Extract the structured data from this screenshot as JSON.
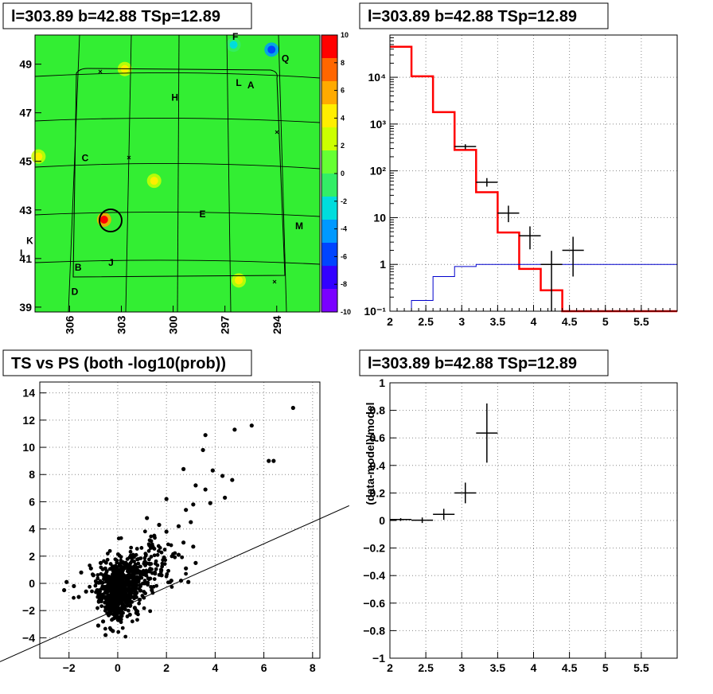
{
  "panels": {
    "map": {
      "title": "l=303.89 b=42.88 TSp=12.89",
      "x_ticks": [
        "306",
        "303",
        "300",
        "297",
        "294"
      ],
      "y_ticks": [
        "49",
        "47",
        "45",
        "43",
        "41",
        "39"
      ],
      "colorbar_ticks": [
        "10",
        "8",
        "6",
        "4",
        "2",
        "0",
        "-2",
        "-4",
        "-6",
        "-8",
        "-10"
      ],
      "colorbar_colors": [
        "#ff0000",
        "#ff6600",
        "#ffaa00",
        "#ffee00",
        "#ccff00",
        "#66ff33",
        "#33ee66",
        "#00dddd",
        "#0099ff",
        "#0044ff",
        "#3300ff",
        "#7a00ff"
      ],
      "background_color": "#33ee33",
      "labels": [
        "F",
        "L",
        "A",
        "H",
        "C",
        "E",
        "K",
        "M",
        "J",
        "B",
        "D",
        "Q",
        "I"
      ]
    },
    "spectrum": {
      "title": "l=303.89 b=42.88 TSp=12.89"
    },
    "scatter": {
      "title": "TS vs PS (both -log10(prob))"
    },
    "residual": {
      "title": "l=303.89 b=42.88 TSp=12.89"
    }
  },
  "chart_data": [
    {
      "type": "heatmap",
      "title": "l=303.89 b=42.88 TSp=12.89",
      "xlabel": "",
      "ylabel": "",
      "xlim": [
        308,
        291.5
      ],
      "ylim": [
        38.8,
        50.2
      ],
      "zlim": [
        -10,
        10
      ],
      "background_level": 1,
      "hotspots": [
        {
          "x": 304.0,
          "y": 42.6,
          "z": 10,
          "label": "circled source"
        },
        {
          "x": 307.8,
          "y": 45.2,
          "z": 5
        },
        {
          "x": 301.1,
          "y": 44.2,
          "z": 4
        },
        {
          "x": 296.2,
          "y": 40.1,
          "z": 4
        },
        {
          "x": 302.8,
          "y": 48.8,
          "z": 4
        },
        {
          "x": 294.3,
          "y": 49.6,
          "z": -7
        },
        {
          "x": 296.5,
          "y": 49.8,
          "z": -2
        }
      ],
      "labels": [
        {
          "text": "F",
          "x": 296.4,
          "y": 50.0
        },
        {
          "text": "L",
          "x": 296.2,
          "y": 48.1
        },
        {
          "text": "A",
          "x": 295.5,
          "y": 48.0
        },
        {
          "text": "H",
          "x": 299.9,
          "y": 47.5
        },
        {
          "text": "C",
          "x": 305.1,
          "y": 45.0
        },
        {
          "text": "E",
          "x": 298.3,
          "y": 42.7
        },
        {
          "text": "K",
          "x": 308.3,
          "y": 41.6
        },
        {
          "text": "M",
          "x": 292.7,
          "y": 42.2
        },
        {
          "text": "J",
          "x": 303.6,
          "y": 40.7
        },
        {
          "text": "B",
          "x": 305.5,
          "y": 40.5
        },
        {
          "text": "D",
          "x": 305.7,
          "y": 39.5
        },
        {
          "text": "Q",
          "x": 293.5,
          "y": 49.1
        },
        {
          "text": "I",
          "x": 308.8,
          "y": 41.1
        }
      ]
    },
    {
      "type": "line",
      "title": "l=303.89 b=42.88 TSp=12.89",
      "xlabel": "",
      "ylabel": "",
      "xlim": [
        2,
        6
      ],
      "ylim": [
        0.1,
        80000
      ],
      "yscale": "log",
      "grid": true,
      "series": [
        {
          "color": "#ff0000",
          "style": "step",
          "bins": [
            2.0,
            2.3,
            2.6,
            2.9,
            3.2,
            3.5,
            3.8,
            4.1,
            4.4,
            4.7,
            5.0,
            5.3,
            5.6,
            6.0
          ],
          "values": [
            45000,
            10500,
            1800,
            280,
            35,
            4.8,
            0.8,
            0.28,
            0.1,
            0.1,
            0.1,
            0.1,
            0.1
          ]
        },
        {
          "color": "#0000cc",
          "style": "step",
          "bins": [
            2.0,
            2.3,
            2.6,
            2.9,
            3.2,
            3.5,
            3.8,
            4.1,
            4.4,
            4.7,
            5.0,
            5.3,
            5.6,
            6.0
          ],
          "values": [
            0.05,
            0.17,
            0.55,
            0.9,
            1.0,
            1.0,
            1.0,
            1.0,
            1.0,
            1.0,
            1.0,
            1.0,
            1.0
          ]
        },
        {
          "color": "#000000",
          "style": "errorbar",
          "points": [
            {
              "x": 3.05,
              "y": 330,
              "xerr": 0.15,
              "ylo": 290,
              "yhi": 370
            },
            {
              "x": 3.35,
              "y": 57,
              "xerr": 0.15,
              "ylo": 46,
              "yhi": 70
            },
            {
              "x": 3.65,
              "y": 12.5,
              "xerr": 0.15,
              "ylo": 8,
              "yhi": 18
            },
            {
              "x": 3.95,
              "y": 4.1,
              "xerr": 0.15,
              "ylo": 2.1,
              "yhi": 6.5
            },
            {
              "x": 4.25,
              "y": 1.0,
              "xerr": 0.15,
              "ylo": 0.1,
              "yhi": 1.95
            },
            {
              "x": 4.55,
              "y": 2.0,
              "xerr": 0.15,
              "ylo": 0.55,
              "yhi": 3.9
            }
          ]
        }
      ]
    },
    {
      "type": "scatter",
      "title": "TS vs PS (both -log10(prob))",
      "xlabel": "",
      "ylabel": "",
      "xlim": [
        -3.2,
        8.3
      ],
      "ylim": [
        -5.5,
        14.8
      ],
      "grid": true,
      "fit_line": {
        "slope": 0.78,
        "intercept": -1.7
      },
      "bulk": {
        "cx": 0.0,
        "cy": -0.3,
        "count": 900
      },
      "points": [
        [
          7.2,
          12.9
        ],
        [
          5.5,
          11.6
        ],
        [
          4.8,
          11.3
        ],
        [
          3.6,
          10.9
        ],
        [
          6.2,
          9.0
        ],
        [
          6.4,
          9.0
        ],
        [
          3.5,
          9.8
        ],
        [
          3.9,
          8.3
        ],
        [
          2.7,
          8.4
        ],
        [
          4.3,
          7.9
        ],
        [
          4.7,
          7.6
        ],
        [
          3.2,
          7.2
        ],
        [
          3.6,
          6.9
        ],
        [
          3.8,
          5.9
        ],
        [
          4.4,
          6.3
        ],
        [
          2.0,
          6.2
        ],
        [
          3.1,
          5.8
        ],
        [
          2.8,
          5.4
        ],
        [
          3.0,
          4.5
        ],
        [
          2.5,
          4.2
        ],
        [
          2.0,
          3.8
        ],
        [
          2.7,
          3.0
        ],
        [
          3.1,
          2.7
        ],
        [
          2.5,
          2.1
        ],
        [
          3.2,
          1.5
        ],
        [
          2.8,
          1.1
        ],
        [
          2.6,
          0.2
        ],
        [
          2.9,
          0.1
        ],
        [
          2.2,
          0.2
        ],
        [
          1.9,
          1.9
        ],
        [
          1.5,
          3.5
        ],
        [
          1.2,
          4.8
        ],
        [
          1.7,
          4.3
        ],
        [
          1.3,
          2.8
        ],
        [
          -2.2,
          -0.5
        ],
        [
          -2.1,
          0.1
        ],
        [
          -1.8,
          -0.2
        ],
        [
          -1.6,
          -1.0
        ],
        [
          -1.3,
          -0.6
        ],
        [
          -1.5,
          0.8
        ],
        [
          -1.1,
          1.1
        ],
        [
          -0.5,
          -3.8
        ],
        [
          -0.8,
          -3.1
        ],
        [
          -0.2,
          -3.5
        ],
        [
          -0.6,
          -2.8
        ],
        [
          0.5,
          -2.3
        ],
        [
          -1.0,
          0.6
        ],
        [
          -0.7,
          1.5
        ],
        [
          0.9,
          -1.2
        ],
        [
          0.7,
          -1.8
        ],
        [
          1.4,
          -0.5
        ],
        [
          1.8,
          0.6
        ]
      ]
    },
    {
      "type": "scatter",
      "title": "l=303.89 b=42.88 TSp=12.89",
      "xlabel": "",
      "ylabel": "(data-model)/model",
      "xlim": [
        2,
        6
      ],
      "ylim": [
        -1,
        1
      ],
      "grid": true,
      "points": [
        {
          "x": 2.15,
          "y": 0.007,
          "xerr": 0.15,
          "yerr": 0.01
        },
        {
          "x": 2.45,
          "y": 0.002,
          "xerr": 0.15,
          "yerr": 0.02
        },
        {
          "x": 2.75,
          "y": 0.045,
          "xerr": 0.15,
          "yerr": 0.04
        },
        {
          "x": 3.05,
          "y": 0.2,
          "xerr": 0.15,
          "yerr": 0.075
        },
        {
          "x": 3.35,
          "y": 0.635,
          "xerr": 0.15,
          "yerr": 0.215
        }
      ]
    }
  ]
}
